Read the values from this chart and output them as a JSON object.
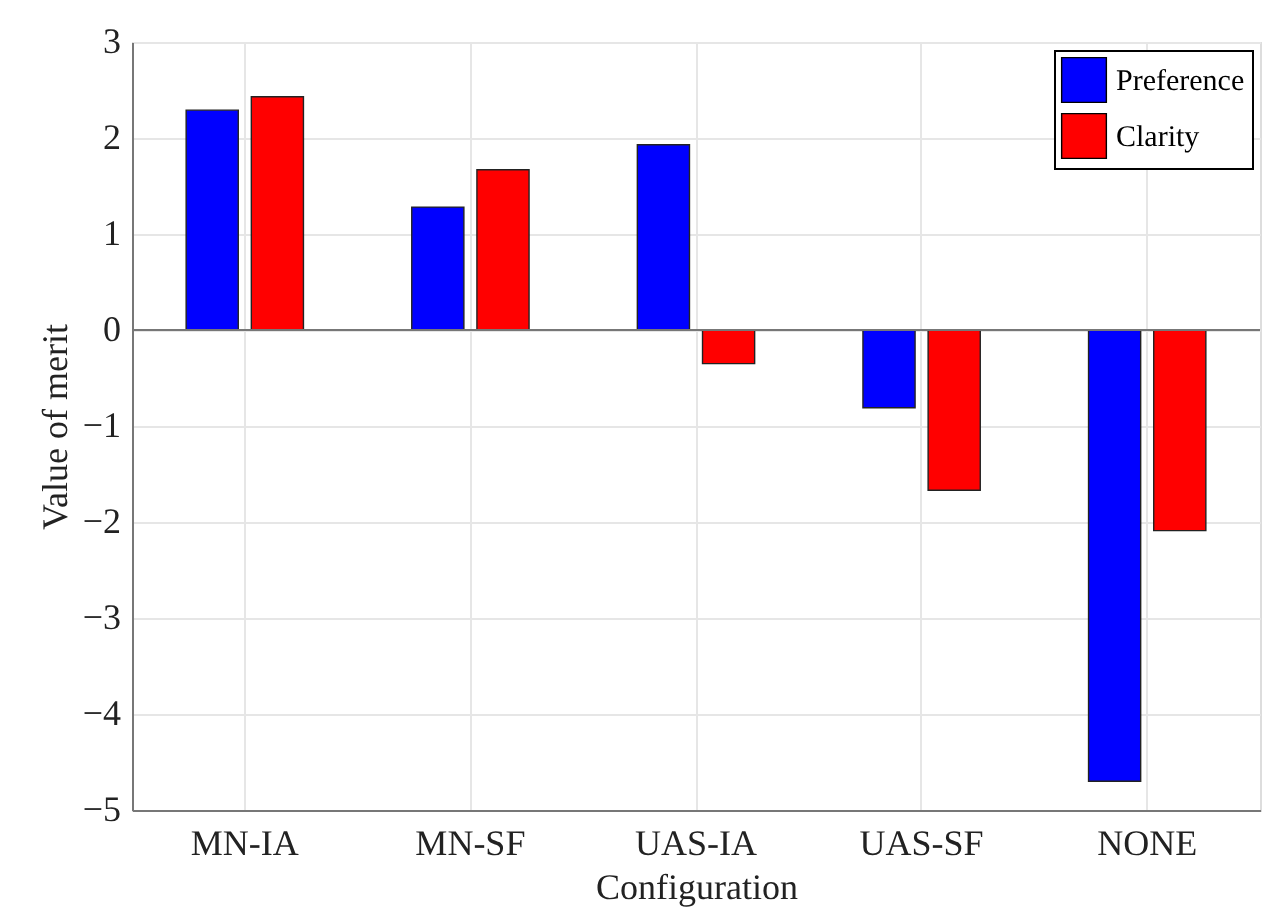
{
  "chart_data": {
    "type": "bar",
    "xlabel": "Configuration",
    "ylabel": "Value of merit",
    "categories": [
      "MN-IA",
      "MN-SF",
      "UAS-IA",
      "UAS-SF",
      "NONE"
    ],
    "series": [
      {
        "name": "Preference",
        "color": "#0000ff",
        "values": [
          2.29,
          1.28,
          1.93,
          -0.81,
          -4.7
        ]
      },
      {
        "name": "Clarity",
        "color": "#ff0000",
        "values": [
          2.43,
          1.67,
          -0.35,
          -1.67,
          -2.09
        ]
      }
    ],
    "ylim": [
      -5,
      3
    ],
    "yticks": [
      -5,
      -4,
      -3,
      -2,
      -1,
      0,
      1,
      2,
      3
    ],
    "grid": true,
    "legend": "top right"
  }
}
